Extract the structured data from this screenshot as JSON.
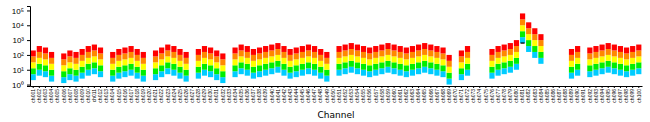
{
  "chart_data": {
    "type": "bar",
    "stacked": true,
    "log": "y",
    "xlabel": "Channel",
    "ylim": [
      0.8,
      200000
    ],
    "yticks": [
      {
        "value": 1,
        "label": "10⁰"
      },
      {
        "value": 10,
        "label": "10¹"
      },
      {
        "value": 100,
        "label": "10²"
      },
      {
        "value": 1000,
        "label": "10³"
      },
      {
        "value": 10000,
        "label": "10⁴"
      },
      {
        "value": 100000,
        "label": "10⁵"
      }
    ],
    "categories": [
      "ch001",
      "ch002",
      "ch003",
      "ch004",
      "ch005",
      "ch006",
      "ch007",
      "ch008",
      "ch009",
      "ch010",
      "ch011",
      "ch012",
      "ch013",
      "ch014",
      "ch015",
      "ch016",
      "ch017",
      "ch018",
      "ch019",
      "ch020",
      "ch021",
      "ch022",
      "ch023",
      "ch024",
      "ch025",
      "ch026",
      "ch027",
      "ch028",
      "ch029",
      "ch030",
      "ch031",
      "ch032",
      "ch033",
      "ch034",
      "ch035",
      "ch036",
      "ch037",
      "ch038",
      "ch039",
      "ch040",
      "ch041",
      "ch042",
      "ch043",
      "ch044",
      "ch045",
      "ch046",
      "ch047",
      "ch048",
      "ch049",
      "ch050",
      "ch051",
      "ch052",
      "ch053",
      "ch054",
      "ch055",
      "ch056",
      "ch057",
      "ch058",
      "ch059",
      "ch060",
      "ch061",
      "ch062",
      "ch063",
      "ch064",
      "ch065",
      "ch066",
      "ch067",
      "ch068",
      "ch069",
      "ch070",
      "ch071",
      "ch072",
      "ch073",
      "ch074",
      "ch075",
      "ch076",
      "ch077",
      "ch078",
      "ch079",
      "ch080",
      "ch081",
      "ch082",
      "ch083",
      "ch084",
      "ch085",
      "ch086",
      "ch087",
      "ch088",
      "ch089",
      "ch090",
      "ch091",
      "ch092",
      "ch093",
      "ch094",
      "ch095",
      "ch096",
      "ch097",
      "ch098",
      "ch099",
      "ch100"
    ],
    "bottoms": [
      1.995,
      3.981,
      3.162,
      1.585,
      null,
      1.259,
      1.995,
      1.585,
      2.512,
      3.981,
      5.012,
      3.162,
      null,
      1.585,
      2.512,
      3.162,
      3.981,
      2.512,
      1.585,
      null,
      1.995,
      3.162,
      5.012,
      3.981,
      2.512,
      1.585,
      null,
      2.512,
      3.981,
      3.162,
      1.995,
      1.259,
      null,
      3.162,
      5.012,
      3.981,
      2.512,
      3.162,
      3.981,
      5.012,
      6.31,
      3.981,
      2.512,
      3.162,
      3.981,
      5.012,
      3.981,
      2.512,
      1.585,
      null,
      3.981,
      5.012,
      6.31,
      5.012,
      3.981,
      3.162,
      3.981,
      5.012,
      6.31,
      5.012,
      3.981,
      3.162,
      3.981,
      5.012,
      6.31,
      5.012,
      3.981,
      3.162,
      1,
      null,
      1.995,
      3.981,
      null,
      null,
      null,
      2.512,
      3.981,
      5.012,
      6.31,
      10,
      630.957,
      158.489,
      63.096,
      25.119,
      null,
      null,
      null,
      null,
      2.512,
      3.981,
      null,
      3.162,
      3.981,
      5.012,
      6.31,
      5.012,
      3.981,
      3.162,
      3.981,
      5.012
    ],
    "series": [
      {
        "color": "#00ccff",
        "values": [
          3.017,
          6.019,
          4.781,
          2.396,
          null,
          1.903,
          3.017,
          2.396,
          3.798,
          6.019,
          7.577,
          4.781,
          null,
          2.396,
          3.798,
          4.781,
          6.019,
          3.798,
          2.396,
          null,
          3.017,
          4.781,
          7.577,
          6.019,
          3.798,
          2.396,
          null,
          3.798,
          6.019,
          4.781,
          3.017,
          1.903,
          null,
          4.781,
          7.577,
          6.019,
          3.798,
          4.781,
          6.019,
          7.577,
          9.539,
          6.019,
          3.798,
          4.781,
          6.019,
          7.577,
          6.019,
          3.798,
          2.396,
          null,
          6.019,
          7.577,
          9.539,
          7.577,
          6.019,
          4.781,
          6.019,
          7.577,
          9.539,
          7.577,
          6.019,
          4.781,
          6.019,
          7.577,
          9.539,
          7.577,
          6.019,
          4.781,
          1.512,
          null,
          3.017,
          6.019,
          null,
          null,
          null,
          3.798,
          6.019,
          7.577,
          9.539,
          15.119,
          953.936,
          239.618,
          95.394,
          37.977,
          null,
          null,
          null,
          null,
          3.798,
          6.019,
          null,
          4.781,
          6.019,
          7.577,
          9.539,
          7.577,
          6.019,
          4.781,
          6.019,
          7.577
        ]
      },
      {
        "color": "#00ee00",
        "values": [
          7.577,
          15.119,
          12.009,
          6.019,
          null,
          4.781,
          7.577,
          6.019,
          9.539,
          15.119,
          19.034,
          12.009,
          null,
          6.019,
          9.539,
          12.009,
          15.119,
          9.539,
          6.019,
          null,
          7.577,
          12.009,
          19.034,
          15.119,
          9.539,
          6.019,
          null,
          9.539,
          15.119,
          12.009,
          7.577,
          4.781,
          null,
          12.009,
          19.034,
          15.119,
          9.539,
          12.009,
          15.119,
          19.034,
          23.962,
          15.119,
          9.539,
          12.009,
          15.119,
          19.034,
          15.119,
          9.539,
          6.019,
          null,
          15.119,
          19.034,
          23.962,
          19.034,
          15.119,
          12.009,
          15.119,
          19.034,
          23.962,
          19.034,
          15.119,
          12.009,
          15.119,
          19.034,
          23.962,
          19.034,
          15.119,
          12.009,
          3.798,
          null,
          7.577,
          15.119,
          null,
          null,
          null,
          9.539,
          15.119,
          19.034,
          23.962,
          37.977,
          2396.179,
          601.893,
          239.618,
          95.394,
          null,
          null,
          null,
          null,
          9.539,
          15.119,
          null,
          12.009,
          15.119,
          19.034,
          23.962,
          19.034,
          15.119,
          12.009,
          15.119,
          19.034
        ]
      },
      {
        "color": "#ffff00",
        "values": [
          19.034,
          37.977,
          30.166,
          15.119,
          null,
          12.009,
          19.034,
          15.119,
          23.962,
          37.977,
          47.81,
          30.166,
          null,
          15.119,
          23.962,
          30.166,
          37.977,
          23.962,
          15.119,
          null,
          19.034,
          30.166,
          47.81,
          37.977,
          23.962,
          15.119,
          null,
          23.962,
          37.977,
          30.166,
          19.034,
          12.009,
          null,
          30.166,
          47.81,
          37.977,
          23.962,
          30.166,
          37.977,
          47.81,
          60.189,
          37.977,
          23.962,
          30.166,
          37.977,
          47.81,
          37.977,
          23.962,
          15.119,
          null,
          37.977,
          47.81,
          60.189,
          47.81,
          37.977,
          30.166,
          37.977,
          47.81,
          60.189,
          47.81,
          37.977,
          30.166,
          37.977,
          47.81,
          60.189,
          47.81,
          37.977,
          30.166,
          9.539,
          null,
          19.034,
          37.977,
          null,
          null,
          null,
          23.962,
          37.977,
          47.81,
          60.189,
          95.394,
          6018.928,
          1511.886,
          601.893,
          239.618,
          null,
          null,
          null,
          null,
          23.962,
          37.977,
          null,
          30.166,
          37.977,
          47.81,
          60.189,
          47.81,
          37.977,
          30.166,
          37.977,
          47.81
        ]
      },
      {
        "color": "#ff8800",
        "values": [
          47.81,
          95.394,
          75.774,
          37.977,
          null,
          30.166,
          47.81,
          37.977,
          60.189,
          95.394,
          120.093,
          75.774,
          null,
          37.977,
          60.189,
          75.774,
          95.394,
          60.189,
          37.977,
          null,
          47.81,
          75.774,
          120.093,
          95.394,
          60.189,
          37.977,
          null,
          60.189,
          95.394,
          75.774,
          47.81,
          30.166,
          null,
          75.774,
          120.093,
          95.394,
          60.189,
          75.774,
          95.394,
          120.093,
          151.189,
          95.394,
          60.189,
          75.774,
          95.394,
          120.093,
          95.394,
          60.189,
          37.977,
          null,
          95.394,
          120.093,
          151.189,
          120.093,
          95.394,
          75.774,
          95.394,
          120.093,
          151.189,
          120.093,
          95.394,
          75.774,
          95.394,
          120.093,
          151.189,
          120.093,
          95.394,
          75.774,
          23.962,
          null,
          47.81,
          95.394,
          null,
          null,
          null,
          60.189,
          95.394,
          120.093,
          151.189,
          239.618,
          15118.864,
          3797.687,
          1511.886,
          601.893,
          null,
          null,
          null,
          null,
          60.189,
          95.394,
          null,
          75.774,
          95.394,
          120.093,
          151.189,
          120.093,
          95.394,
          75.774,
          95.394,
          120.093
        ]
      },
      {
        "color": "#ff0000",
        "values": [
          120.093,
          239.618,
          190.335,
          95.394,
          null,
          75.774,
          120.093,
          95.394,
          151.189,
          239.618,
          301.661,
          190.335,
          null,
          95.394,
          151.189,
          190.335,
          239.618,
          151.189,
          95.394,
          null,
          120.093,
          190.335,
          301.661,
          239.618,
          151.189,
          95.394,
          null,
          151.189,
          239.618,
          190.335,
          120.093,
          75.774,
          null,
          190.335,
          301.661,
          239.618,
          151.189,
          190.335,
          239.618,
          301.661,
          379.769,
          239.618,
          151.189,
          190.335,
          239.618,
          301.661,
          239.618,
          151.189,
          95.394,
          null,
          239.618,
          301.661,
          379.769,
          301.661,
          239.618,
          190.335,
          239.618,
          301.661,
          379.769,
          301.661,
          239.618,
          190.335,
          239.618,
          301.661,
          379.769,
          301.661,
          239.618,
          190.335,
          60.189,
          null,
          120.093,
          239.618,
          null,
          null,
          null,
          151.189,
          239.618,
          301.661,
          379.769,
          601.893,
          37976.87,
          9539.359,
          3797.687,
          1511.886,
          null,
          null,
          null,
          null,
          151.189,
          239.618,
          null,
          190.335,
          239.618,
          301.661,
          379.769,
          301.661,
          239.618,
          190.335,
          239.618,
          301.661
        ]
      }
    ],
    "error_bar": {
      "category": "ch081",
      "value": 630.957,
      "lower": 1.581,
      "upper": 4.743
    }
  }
}
